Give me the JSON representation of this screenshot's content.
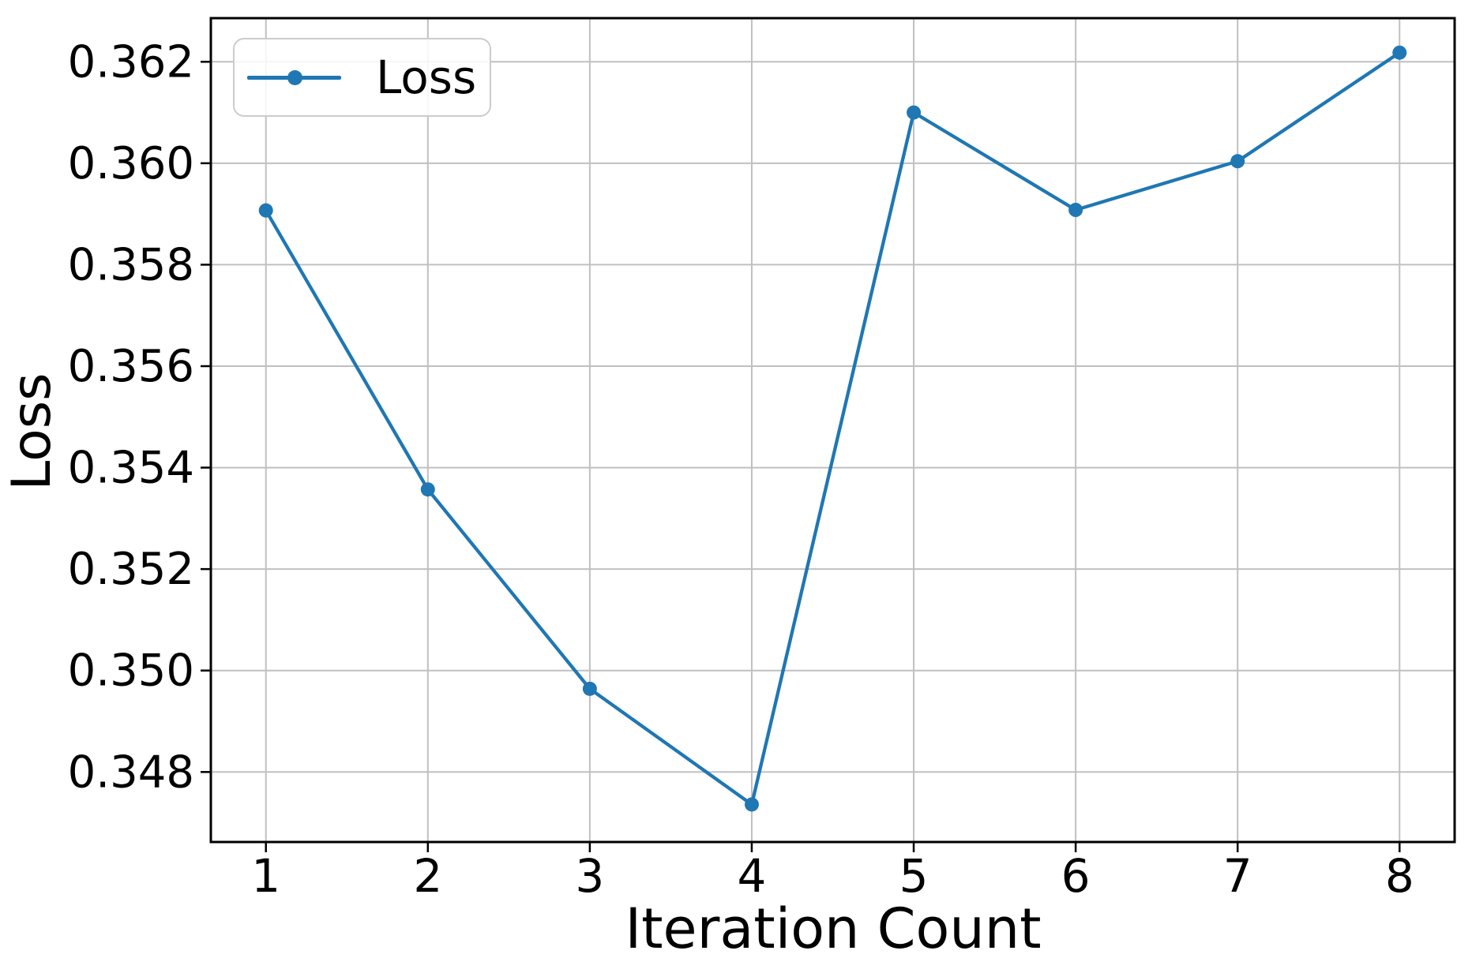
{
  "chart_data": {
    "type": "line",
    "title": "",
    "xlabel": "Iteration Count",
    "ylabel": "Loss",
    "x": [
      1,
      2,
      3,
      4,
      5,
      6,
      7,
      8
    ],
    "series": [
      {
        "name": "Loss",
        "values": [
          0.35907,
          0.35357,
          0.34964,
          0.34736,
          0.361,
          0.35908,
          0.36004,
          0.36218
        ]
      }
    ],
    "xticks": [
      1,
      2,
      3,
      4,
      5,
      6,
      7,
      8
    ],
    "yticks": [
      0.348,
      0.35,
      0.352,
      0.354,
      0.356,
      0.358,
      0.36,
      0.362
    ],
    "ytick_decimals": 3,
    "xlim": [
      0.66,
      8.34
    ],
    "ylim": [
      0.34662,
      0.36286
    ],
    "grid": true,
    "legend": {
      "position": "upper-left",
      "entries": [
        "Loss"
      ]
    },
    "colors": {
      "line": "#1f77b4",
      "marker": "#1f77b4",
      "grid": "#c0c0c0",
      "spine": "#000000",
      "text": "#000000",
      "background": "#ffffff",
      "legend_border": "#cccccc"
    }
  }
}
